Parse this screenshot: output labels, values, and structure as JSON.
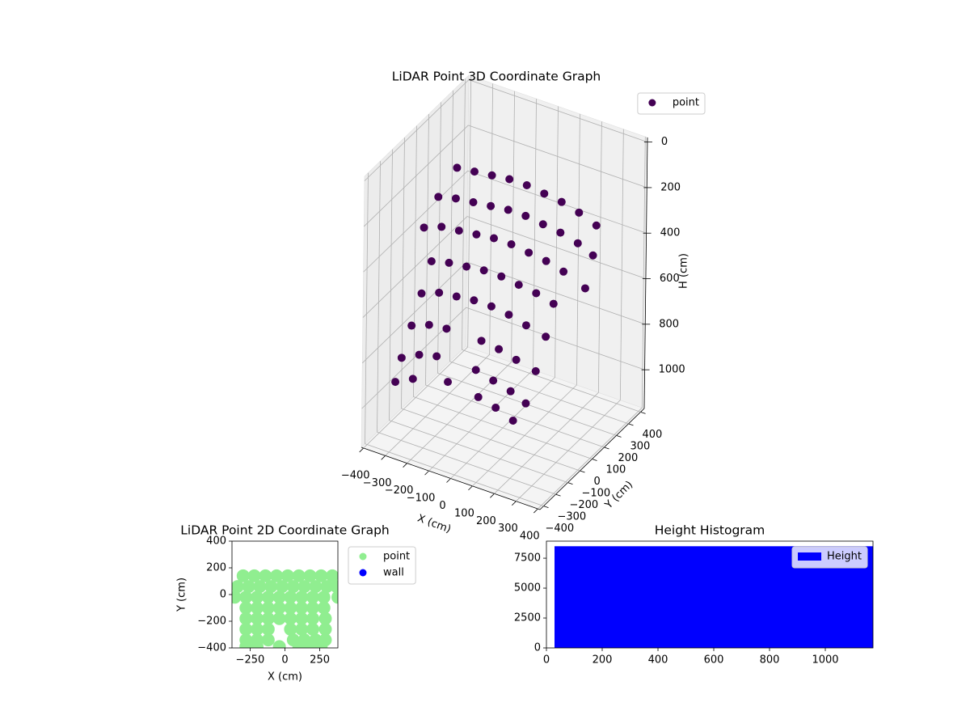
{
  "chart_data": [
    {
      "type": "scatter3d",
      "title": "LiDAR Point 3D Coordinate Graph",
      "xlabel": "X (cm)",
      "ylabel": "Y (cm)",
      "zlabel": "H (cm)",
      "xlim": [
        -410,
        410
      ],
      "ylim": [
        -430,
        430
      ],
      "zlim": [
        1170,
        -20
      ],
      "xticks": [
        {
          "value": -400,
          "label": "−400"
        },
        {
          "value": -300,
          "label": "−300"
        },
        {
          "value": -200,
          "label": "−200"
        },
        {
          "value": -100,
          "label": "−100"
        },
        0,
        100,
        200,
        300,
        400
      ],
      "yticks": [
        {
          "value": -400,
          "label": "−400"
        },
        {
          "value": -300,
          "label": "−300"
        },
        {
          "value": -200,
          "label": "−200"
        },
        {
          "value": -100,
          "label": "−100"
        },
        0,
        100,
        200,
        300,
        400
      ],
      "zticks": [
        0,
        200,
        400,
        600,
        800,
        1000
      ],
      "grid": true,
      "legend": "upper right",
      "series": [
        {
          "name": "point",
          "color": "#440154",
          "x": [
            -300,
            -220,
            -140,
            -60,
            20,
            100,
            180,
            260,
            340,
            -340,
            -260,
            -180,
            -100,
            -20,
            60,
            140,
            220,
            300,
            370,
            -360,
            -280,
            -200,
            -120,
            -40,
            40,
            120,
            200,
            280,
            380,
            -280,
            -200,
            -120,
            -40,
            40,
            120,
            200,
            280,
            -280,
            -200,
            -120,
            -40,
            40,
            120,
            200,
            290,
            -280,
            -200,
            -120,
            40,
            120,
            200,
            290,
            -280,
            -200,
            -120,
            60,
            140,
            220,
            290,
            -280,
            -200,
            -40,
            100,
            180,
            260
          ],
          "y": [
            140,
            140,
            140,
            140,
            140,
            140,
            140,
            140,
            140,
            60,
            60,
            60,
            60,
            60,
            60,
            60,
            60,
            60,
            60,
            -20,
            -20,
            -20,
            -20,
            -20,
            -20,
            -20,
            -20,
            -20,
            -20,
            -100,
            -100,
            -100,
            -100,
            -100,
            -100,
            -100,
            -100,
            -180,
            -180,
            -180,
            -180,
            -180,
            -180,
            -180,
            -180,
            -260,
            -260,
            -260,
            -260,
            -260,
            -260,
            -260,
            -340,
            -340,
            -340,
            -340,
            -340,
            -340,
            -340,
            -390,
            -390,
            -390,
            -390,
            -390,
            -390
          ],
          "z": [
            200,
            190,
            180,
            170,
            170,
            180,
            190,
            210,
            240,
            300,
            280,
            270,
            260,
            250,
            250,
            260,
            270,
            290,
            320,
            400,
            370,
            360,
            350,
            340,
            340,
            350,
            360,
            380,
            420,
            480,
            460,
            450,
            440,
            440,
            450,
            460,
            480,
            580,
            550,
            540,
            530,
            530,
            540,
            560,
            580,
            680,
            650,
            640,
            640,
            650,
            670,
            690,
            780,
            740,
            720,
            720,
            740,
            760,
            790,
            860,
            820,
            780,
            800,
            820,
            850
          ]
        }
      ]
    },
    {
      "type": "scatter",
      "title": "LiDAR Point 2D Coordinate Graph",
      "xlabel": "X (cm)",
      "ylabel": "Y (cm)",
      "xlim": [
        -380,
        380
      ],
      "ylim": [
        -400,
        400
      ],
      "xticks": [
        {
          "value": -250,
          "label": "−250"
        },
        0,
        250
      ],
      "yticks": [
        {
          "value": -400,
          "label": "−400"
        },
        {
          "value": -200,
          "label": "−200"
        },
        0,
        200,
        400
      ],
      "legend": "outside right",
      "series": [
        {
          "name": "point",
          "color": "#90ee90",
          "x": [
            -300,
            -220,
            -140,
            -60,
            20,
            100,
            180,
            260,
            340,
            -340,
            -260,
            -180,
            -100,
            -20,
            60,
            140,
            220,
            300,
            370,
            -360,
            -280,
            -200,
            -120,
            -40,
            40,
            120,
            200,
            280,
            380,
            -280,
            -200,
            -120,
            -40,
            40,
            120,
            200,
            280,
            -280,
            -200,
            -120,
            -40,
            40,
            120,
            200,
            290,
            -280,
            -200,
            -120,
            40,
            120,
            200,
            290,
            -280,
            -200,
            -120,
            60,
            140,
            220,
            290,
            -280,
            -200,
            -40,
            100,
            180,
            260
          ],
          "y": [
            140,
            140,
            140,
            140,
            140,
            140,
            140,
            140,
            140,
            60,
            60,
            60,
            60,
            60,
            60,
            60,
            60,
            60,
            60,
            -20,
            -20,
            -20,
            -20,
            -20,
            -20,
            -20,
            -20,
            -20,
            -20,
            -100,
            -100,
            -100,
            -100,
            -100,
            -100,
            -100,
            -100,
            -180,
            -180,
            -180,
            -180,
            -180,
            -180,
            -180,
            -180,
            -260,
            -260,
            -260,
            -260,
            -260,
            -260,
            -260,
            -340,
            -340,
            -340,
            -340,
            -340,
            -340,
            -340,
            -390,
            -390,
            -390,
            -390,
            -390,
            -390
          ]
        },
        {
          "name": "wall",
          "color": "#0000ff",
          "x": [],
          "y": []
        }
      ]
    },
    {
      "type": "histogram",
      "title": "Height Histogram",
      "xlim": [
        0,
        1171
      ],
      "ylim": [
        0,
        8925
      ],
      "xticks": [
        0,
        200,
        400,
        600,
        800,
        1000
      ],
      "yticks": [
        0,
        2500,
        5000,
        7500
      ],
      "legend": "upper right",
      "bins": [
        29,
        1171
      ],
      "series": [
        {
          "name": "Height",
          "color": "#0000ff",
          "values": [
            8500
          ]
        }
      ]
    }
  ]
}
